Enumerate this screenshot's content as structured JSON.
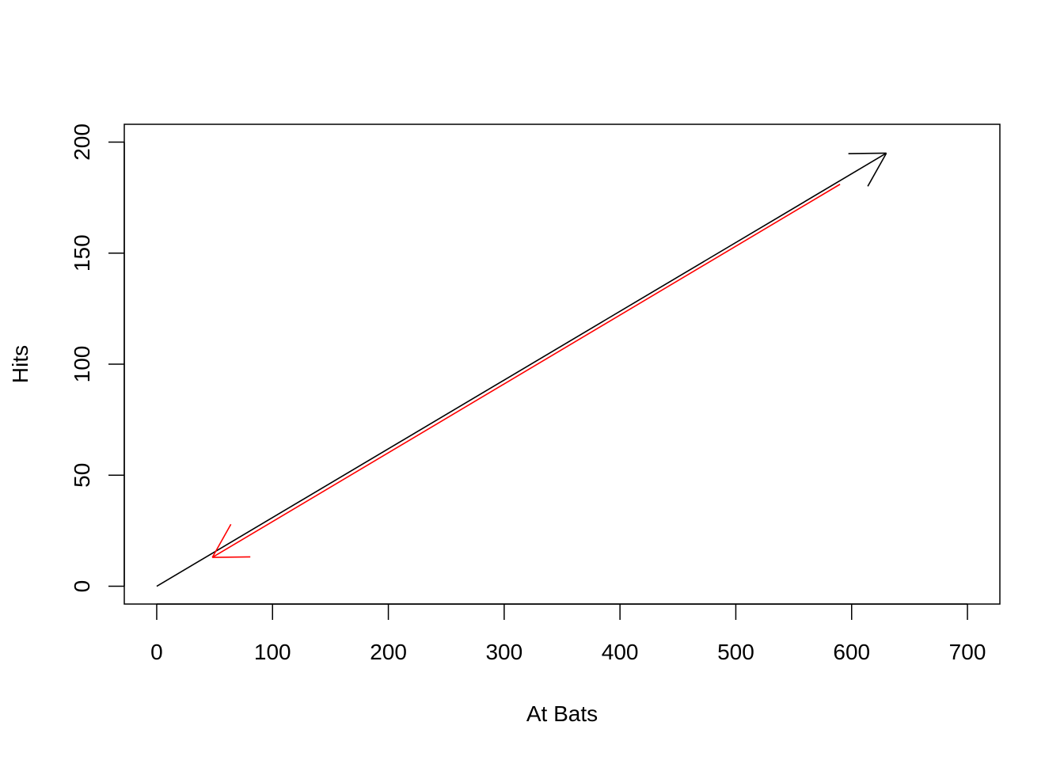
{
  "chart_data": {
    "type": "line",
    "title": "",
    "xlabel": "At Bats",
    "ylabel": "Hits",
    "xlim": [
      -28,
      728
    ],
    "ylim": [
      -8,
      208
    ],
    "xticks": [
      0,
      100,
      200,
      300,
      400,
      500,
      600,
      700
    ],
    "yticks": [
      0,
      50,
      100,
      150,
      200
    ],
    "grid": false,
    "legend": "none",
    "series": [
      {
        "color": "#000000",
        "style": "arrow",
        "x": [
          0,
          630
        ],
        "y": [
          0,
          195
        ]
      },
      {
        "color": "#ff0000",
        "style": "arrow",
        "x": [
          590,
          48
        ],
        "y": [
          181,
          13
        ]
      }
    ]
  }
}
